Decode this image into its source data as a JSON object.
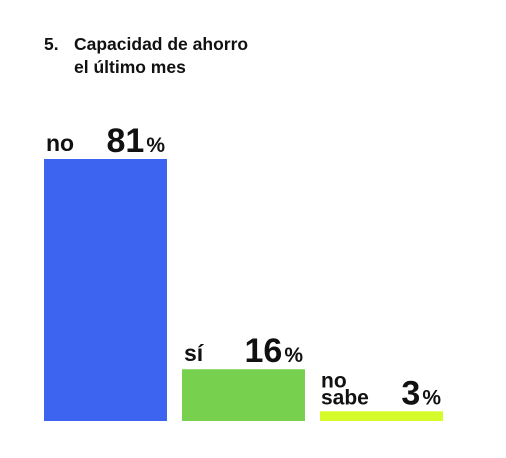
{
  "title": {
    "number": "5.",
    "line1": "Capacidad de ahorro",
    "line2": "el último mes"
  },
  "chart_data": {
    "type": "bar",
    "title": "Capacidad de ahorro el último mes",
    "categories": [
      "no",
      "sí",
      "no sabe"
    ],
    "values": [
      81,
      16,
      3
    ],
    "value_labels": [
      "81",
      "16",
      "3"
    ],
    "unit": "%",
    "colors": [
      "#3c64f0",
      "#77d14f",
      "#d6fb2b"
    ],
    "xlabel": "",
    "ylabel": "",
    "ylim": [
      0,
      81
    ],
    "grid": false,
    "legend": "none"
  }
}
